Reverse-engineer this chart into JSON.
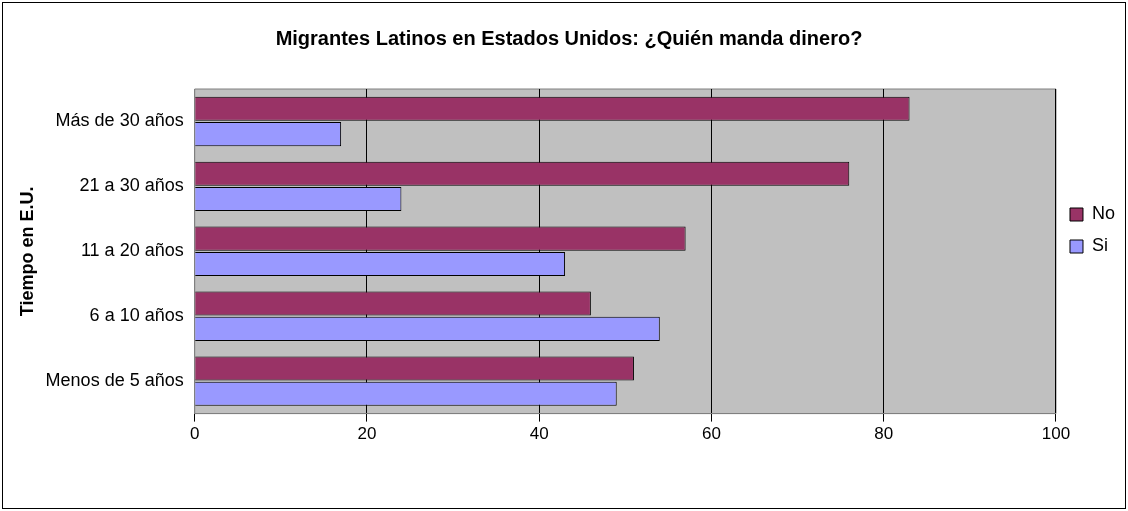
{
  "chart_data": {
    "type": "bar",
    "orientation": "horizontal",
    "title": "Migrantes Latinos en Estados Unidos: ¿Quién manda dinero?",
    "ylabel": "Tiempo en E.U.",
    "categories": [
      "Más de 30 años",
      "21 a 30 años",
      "11 a 20 años",
      "6 a 10 años",
      "Menos de 5 años"
    ],
    "series": [
      {
        "name": "No",
        "color": "#993366",
        "values": [
          83,
          76,
          57,
          46,
          51
        ]
      },
      {
        "name": "Si",
        "color": "#9999ff",
        "values": [
          17,
          24,
          43,
          54,
          49
        ]
      }
    ],
    "xlim": [
      0,
      100
    ],
    "xticks": [
      0,
      20,
      40,
      60,
      80,
      100
    ],
    "grid": "x",
    "legend": "right"
  }
}
